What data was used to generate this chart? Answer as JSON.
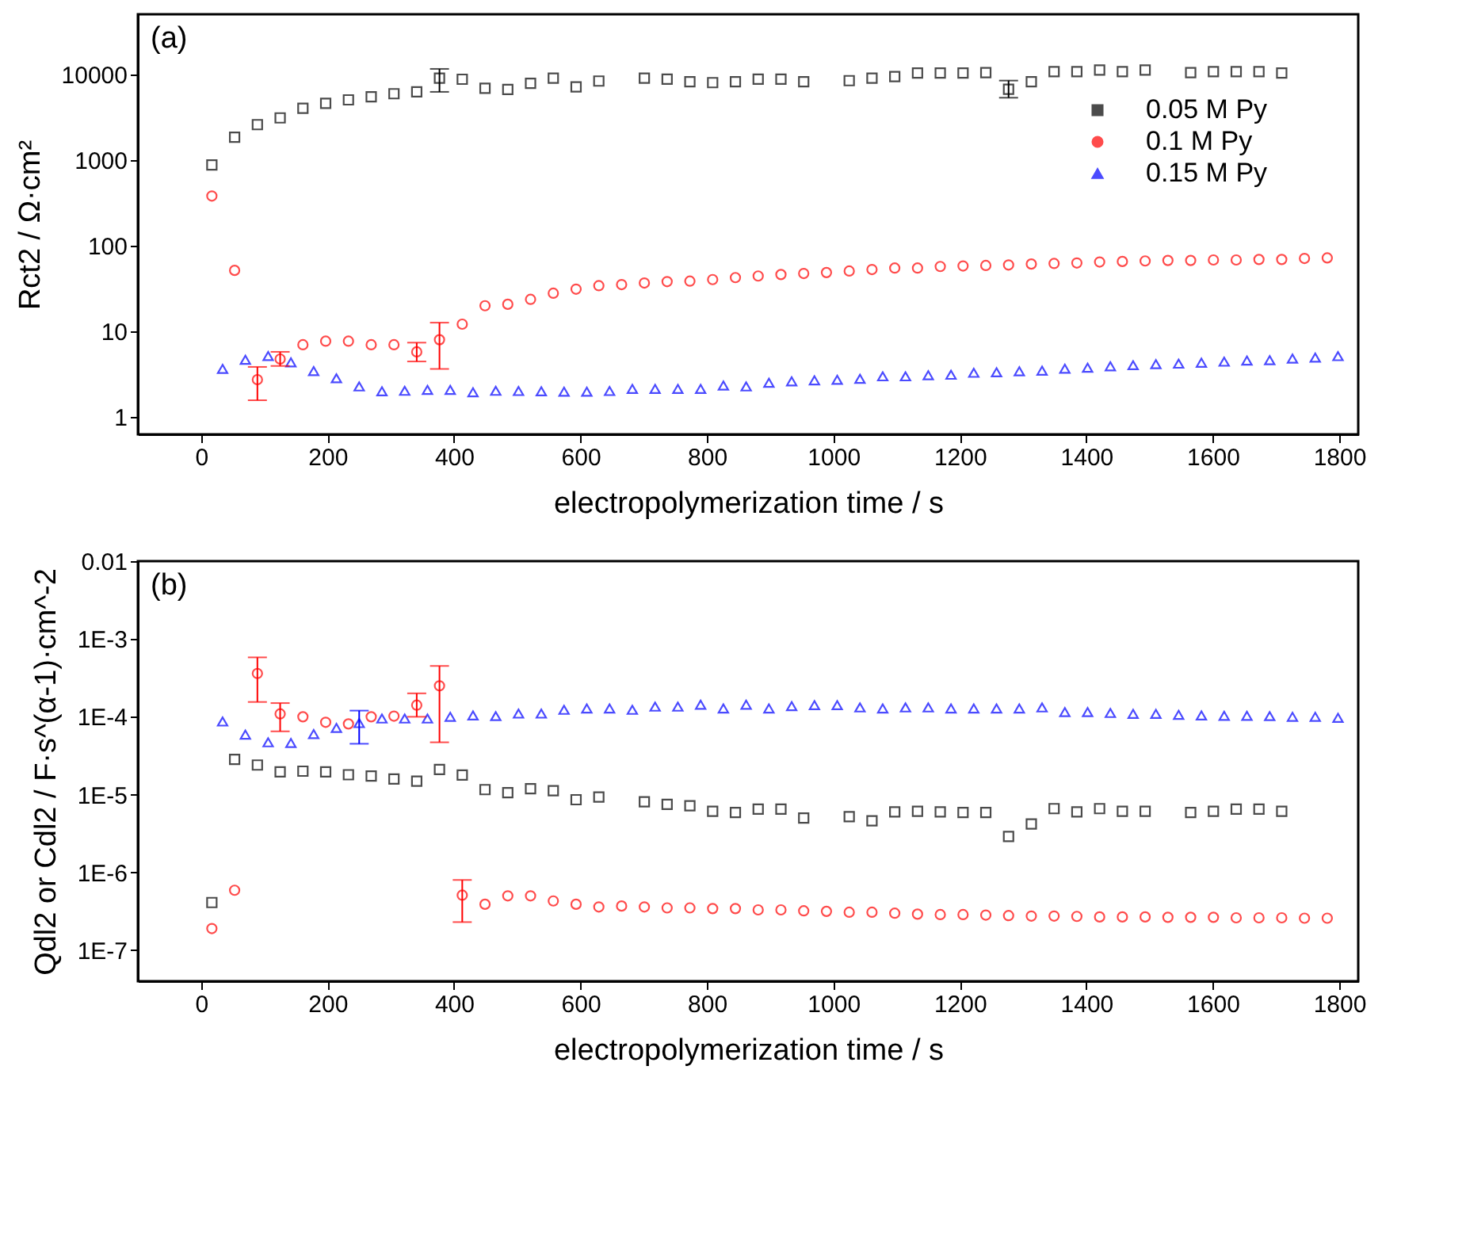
{
  "chart_data": [
    {
      "type": "scatter",
      "xlabel": "electropolymerization time / s",
      "ylabel": "Rct2 / Ω·cm²",
      "annotations": [
        "(a)"
      ],
      "log": "y",
      "grid": false,
      "legend": "top right",
      "xlim": [
        -100,
        1830
      ],
      "xticks": [
        0,
        200,
        400,
        600,
        800,
        1000,
        1200,
        1400,
        1600,
        1800
      ],
      "ylim": [
        0.62,
        50000
      ],
      "yticks": [
        1,
        10,
        100,
        1000,
        10000
      ],
      "series": [
        {
          "name": "0.05 M Py",
          "color": "#000000",
          "marker": "square",
          "x": [
            17,
            53,
            89,
            125,
            161,
            197,
            233,
            269,
            305,
            341,
            377,
            413,
            449,
            485,
            521,
            557,
            593,
            629,
            665,
            701,
            737,
            773,
            809,
            845,
            881,
            917,
            953,
            989,
            1025,
            1061,
            1097,
            1133,
            1169,
            1205,
            1241,
            1277,
            1313,
            1349,
            1385,
            1421,
            1457,
            1493,
            1529,
            1565,
            1601,
            1637,
            1673,
            1709
          ],
          "values": [
            870,
            1830,
            2570,
            3080,
            3980,
            4550,
            5000,
            5430,
            5900,
            6200,
            8960,
            8710,
            6840,
            6630,
            7800,
            8960,
            7100,
            8300,
            null,
            8960,
            8730,
            8160,
            7950,
            8160,
            8730,
            8730,
            8160,
            null,
            8390,
            8980,
            9340,
            10280,
            10280,
            10280,
            10420,
            6660,
            8160,
            10700,
            10700,
            11140,
            10700,
            11140,
            null,
            10420,
            10700,
            10700,
            10700,
            10280
          ],
          "errors": [
            null,
            null,
            null,
            null,
            null,
            null,
            null,
            null,
            null,
            null,
            [
              6200,
              11500
            ],
            null,
            null,
            null,
            null,
            null,
            null,
            null,
            null,
            null,
            null,
            null,
            null,
            null,
            null,
            null,
            null,
            null,
            null,
            null,
            null,
            null,
            null,
            null,
            null,
            [
              5300,
              8400
            ],
            null,
            null,
            null,
            null,
            null,
            null,
            null,
            null,
            null,
            null,
            null,
            null
          ]
        },
        {
          "name": "0.1 M Py",
          "color": "#ff0000",
          "marker": "circle",
          "x": [
            17,
            53,
            89,
            125,
            161,
            197,
            233,
            269,
            305,
            341,
            377,
            413,
            449,
            485,
            521,
            557,
            593,
            629,
            665,
            701,
            737,
            773,
            809,
            845,
            881,
            917,
            953,
            989,
            1025,
            1061,
            1097,
            1133,
            1169,
            1205,
            1241,
            1277,
            1313,
            1349,
            1385,
            1421,
            1457,
            1493,
            1529,
            1565,
            1601,
            1637,
            1673,
            1709,
            1745,
            1781
          ],
          "values": [
            377,
            51,
            2.7,
            4.7,
            6.9,
            7.6,
            7.6,
            6.9,
            6.9,
            5.7,
            7.9,
            12,
            19.7,
            20.5,
            23.4,
            27.6,
            30.8,
            33.8,
            34.8,
            36.3,
            37.7,
            38.2,
            39.8,
            42,
            43.8,
            45.6,
            46.9,
            48.1,
            50.1,
            52.2,
            54.3,
            54.3,
            56.6,
            57.4,
            58.2,
            59,
            60.5,
            61.4,
            62.2,
            63.9,
            64.8,
            65.7,
            66.6,
            66.6,
            67.5,
            67.5,
            68.4,
            68.4,
            70.3,
            71.3
          ],
          "errors": [
            null,
            null,
            [
              1.55,
              3.8
            ],
            [
              3.9,
              5.7
            ],
            null,
            null,
            null,
            null,
            null,
            [
              4.4,
              7.3
            ],
            [
              3.6,
              12.5
            ],
            null,
            null,
            null,
            null,
            null,
            null,
            null,
            null,
            null,
            null,
            null,
            null,
            null,
            null,
            null,
            null,
            null,
            null,
            null,
            null,
            null,
            null,
            null,
            null,
            null,
            null,
            null,
            null,
            null,
            null,
            null,
            null,
            null,
            null,
            null,
            null,
            null,
            null,
            null
          ]
        },
        {
          "name": "0.15 M Py",
          "color": "#0000ff",
          "marker": "triangle",
          "x": [
            34,
            70,
            106,
            142,
            178,
            214,
            250,
            286,
            322,
            358,
            394,
            430,
            466,
            502,
            538,
            574,
            610,
            646,
            682,
            718,
            754,
            790,
            826,
            862,
            898,
            934,
            970,
            1006,
            1042,
            1078,
            1114,
            1150,
            1186,
            1222,
            1258,
            1294,
            1330,
            1366,
            1402,
            1438,
            1474,
            1510,
            1546,
            1582,
            1618,
            1654,
            1690,
            1726,
            1762,
            1798
          ],
          "values": [
            3.6,
            4.6,
            5.1,
            4.3,
            3.4,
            2.8,
            2.25,
            1.97,
            2.0,
            2.05,
            2.05,
            1.92,
            2.0,
            1.99,
            1.97,
            1.95,
            1.95,
            1.99,
            2.1,
            2.1,
            2.1,
            2.1,
            2.3,
            2.25,
            2.48,
            2.58,
            2.65,
            2.69,
            2.76,
            2.95,
            2.95,
            3.04,
            3.08,
            3.25,
            3.29,
            3.38,
            3.43,
            3.62,
            3.72,
            3.87,
            3.98,
            4.09,
            4.15,
            4.26,
            4.38,
            4.5,
            4.56,
            4.75,
            4.88,
            5.08
          ]
        }
      ]
    },
    {
      "type": "scatter",
      "xlabel": "electropolymerization time / s",
      "ylabel": "Qdl2 or Cdl2 / F·s^(α-1)·cm^-2",
      "annotations": [
        "(b)"
      ],
      "log": "y",
      "grid": false,
      "legend": "top right",
      "xlim": [
        -100,
        1830
      ],
      "xticks": [
        0,
        200,
        400,
        600,
        800,
        1000,
        1200,
        1400,
        1600,
        1800
      ],
      "ylim": [
        4e-08,
        0.01
      ],
      "yticks": [
        {
          "value": 1e-07,
          "label": "1E-7"
        },
        {
          "value": 1e-06,
          "label": "1E-6"
        },
        {
          "value": 1e-05,
          "label": "1E-5"
        },
        {
          "value": 0.0001,
          "label": "1E-4"
        },
        {
          "value": 0.001,
          "label": "1E-3"
        },
        0.01
      ],
      "series": [
        {
          "name": "0.05 M Py",
          "color": "#000000",
          "marker": "square",
          "x": [
            17,
            53,
            89,
            125,
            161,
            197,
            233,
            269,
            305,
            341,
            377,
            413,
            449,
            485,
            521,
            557,
            593,
            629,
            665,
            701,
            737,
            773,
            809,
            845,
            881,
            917,
            953,
            989,
            1025,
            1061,
            1097,
            1133,
            1169,
            1205,
            1241,
            1277,
            1313,
            1349,
            1385,
            1421,
            1457,
            1493,
            1529,
            1565,
            1601,
            1637,
            1673,
            1709
          ],
          "values": [
            4.1e-07,
            2.83e-05,
            2.4e-05,
            1.96e-05,
            2e-05,
            1.96e-05,
            1.8e-05,
            1.73e-05,
            1.59e-05,
            1.49e-05,
            2.1e-05,
            1.78e-05,
            1.16e-05,
            1.06e-05,
            1.19e-05,
            1.12e-05,
            8.6e-06,
            9.3e-06,
            null,
            8.1e-06,
            7.5e-06,
            7.2e-06,
            6.1e-06,
            5.9e-06,
            6.5e-06,
            6.5e-06,
            5e-06,
            null,
            5.2e-06,
            4.6e-06,
            6e-06,
            6.1e-06,
            6e-06,
            5.9e-06,
            5.9e-06,
            2.9e-06,
            4.2e-06,
            6.6e-06,
            6e-06,
            6.6e-06,
            6.1e-06,
            6.1e-06,
            null,
            5.9e-06,
            6.1e-06,
            6.5e-06,
            6.5e-06,
            6.1e-06
          ]
        },
        {
          "name": "0.1 M Py",
          "color": "#ff0000",
          "marker": "circle",
          "x": [
            17,
            53,
            89,
            125,
            161,
            197,
            233,
            269,
            305,
            341,
            377,
            413,
            449,
            485,
            521,
            557,
            593,
            629,
            665,
            701,
            737,
            773,
            809,
            845,
            881,
            917,
            953,
            989,
            1025,
            1061,
            1097,
            1133,
            1169,
            1205,
            1241,
            1277,
            1313,
            1349,
            1385,
            1421,
            1457,
            1493,
            1529,
            1565,
            1601,
            1637,
            1673,
            1709,
            1745,
            1781
          ],
          "values": [
            1.9e-07,
            5.9e-07,
            0.00036,
            0.000109,
            0.0001,
            8.5e-05,
            8.1e-05,
            0.0001,
            0.000102,
            0.000141,
            0.00025,
            5.1e-07,
            3.9e-07,
            5e-07,
            5e-07,
            4.3e-07,
            3.9e-07,
            3.6e-07,
            3.7e-07,
            3.6e-07,
            3.5e-07,
            3.5e-07,
            3.43e-07,
            3.43e-07,
            3.3e-07,
            3.3e-07,
            3.21e-07,
            3.16e-07,
            3.08e-07,
            3.08e-07,
            2.99e-07,
            2.91e-07,
            2.87e-07,
            2.87e-07,
            2.83e-07,
            2.79e-07,
            2.75e-07,
            2.75e-07,
            2.72e-07,
            2.68e-07,
            2.68e-07,
            2.68e-07,
            2.65e-07,
            2.65e-07,
            2.65e-07,
            2.61e-07,
            2.61e-07,
            2.61e-07,
            2.58e-07,
            2.58e-07
          ],
          "errors": [
            null,
            null,
            [
              0.000155,
              0.00058
            ],
            [
              6.5e-05,
              0.00015
            ],
            null,
            null,
            null,
            null,
            null,
            [
              0.0001,
              0.0002
            ],
            [
              4.7e-05,
              0.00045
            ],
            [
              2.3e-07,
              8e-07
            ],
            null,
            null,
            null,
            null,
            null,
            null,
            null,
            null,
            null,
            null,
            null,
            null,
            null,
            null,
            null,
            null,
            null,
            null,
            null,
            null,
            null,
            null,
            null,
            null,
            null,
            null,
            null,
            null,
            null,
            null,
            null,
            null,
            null,
            null,
            null,
            null,
            null,
            null
          ]
        },
        {
          "name": "0.15 M Py",
          "color": "#0000ff",
          "marker": "triangle",
          "x": [
            34,
            70,
            106,
            142,
            178,
            214,
            250,
            286,
            322,
            358,
            394,
            430,
            466,
            502,
            538,
            574,
            610,
            646,
            682,
            718,
            754,
            790,
            826,
            862,
            898,
            934,
            970,
            1006,
            1042,
            1078,
            1114,
            1150,
            1186,
            1222,
            1258,
            1294,
            1330,
            1366,
            1402,
            1438,
            1474,
            1510,
            1546,
            1582,
            1618,
            1654,
            1690,
            1726,
            1762,
            1798
          ],
          "values": [
            8.7e-05,
            5.9e-05,
            4.7e-05,
            4.6e-05,
            6e-05,
            7.2e-05,
            8.3e-05,
            9.5e-05,
            9.5e-05,
            9.5e-05,
            0.0001,
            0.000104,
            0.000102,
            0.00011,
            0.00011,
            0.000123,
            0.000128,
            0.000128,
            0.000123,
            0.000135,
            0.000135,
            0.000143,
            0.000128,
            0.000143,
            0.000128,
            0.000137,
            0.000141,
            0.000141,
            0.000132,
            0.000128,
            0.000132,
            0.000132,
            0.000128,
            0.000128,
            0.000128,
            0.000128,
            0.000132,
            0.000115,
            0.000115,
            0.000112,
            0.000109,
            0.000109,
            0.000106,
            0.000104,
            0.000103,
            0.000103,
            0.000102,
            0.0001,
            0.0001,
            9.7e-05
          ],
          "errors": [
            null,
            null,
            null,
            null,
            null,
            null,
            [
              4.5e-05,
              0.00012
            ],
            null,
            null,
            null,
            null,
            null,
            null,
            null,
            null,
            null,
            null,
            null,
            null,
            null,
            null,
            null,
            null,
            null,
            null,
            null,
            null,
            null,
            null,
            null,
            null,
            null,
            null,
            null,
            null,
            null,
            null,
            null,
            null,
            null,
            null,
            null,
            null,
            null,
            null,
            null,
            null,
            null,
            null,
            null
          ]
        }
      ]
    }
  ]
}
